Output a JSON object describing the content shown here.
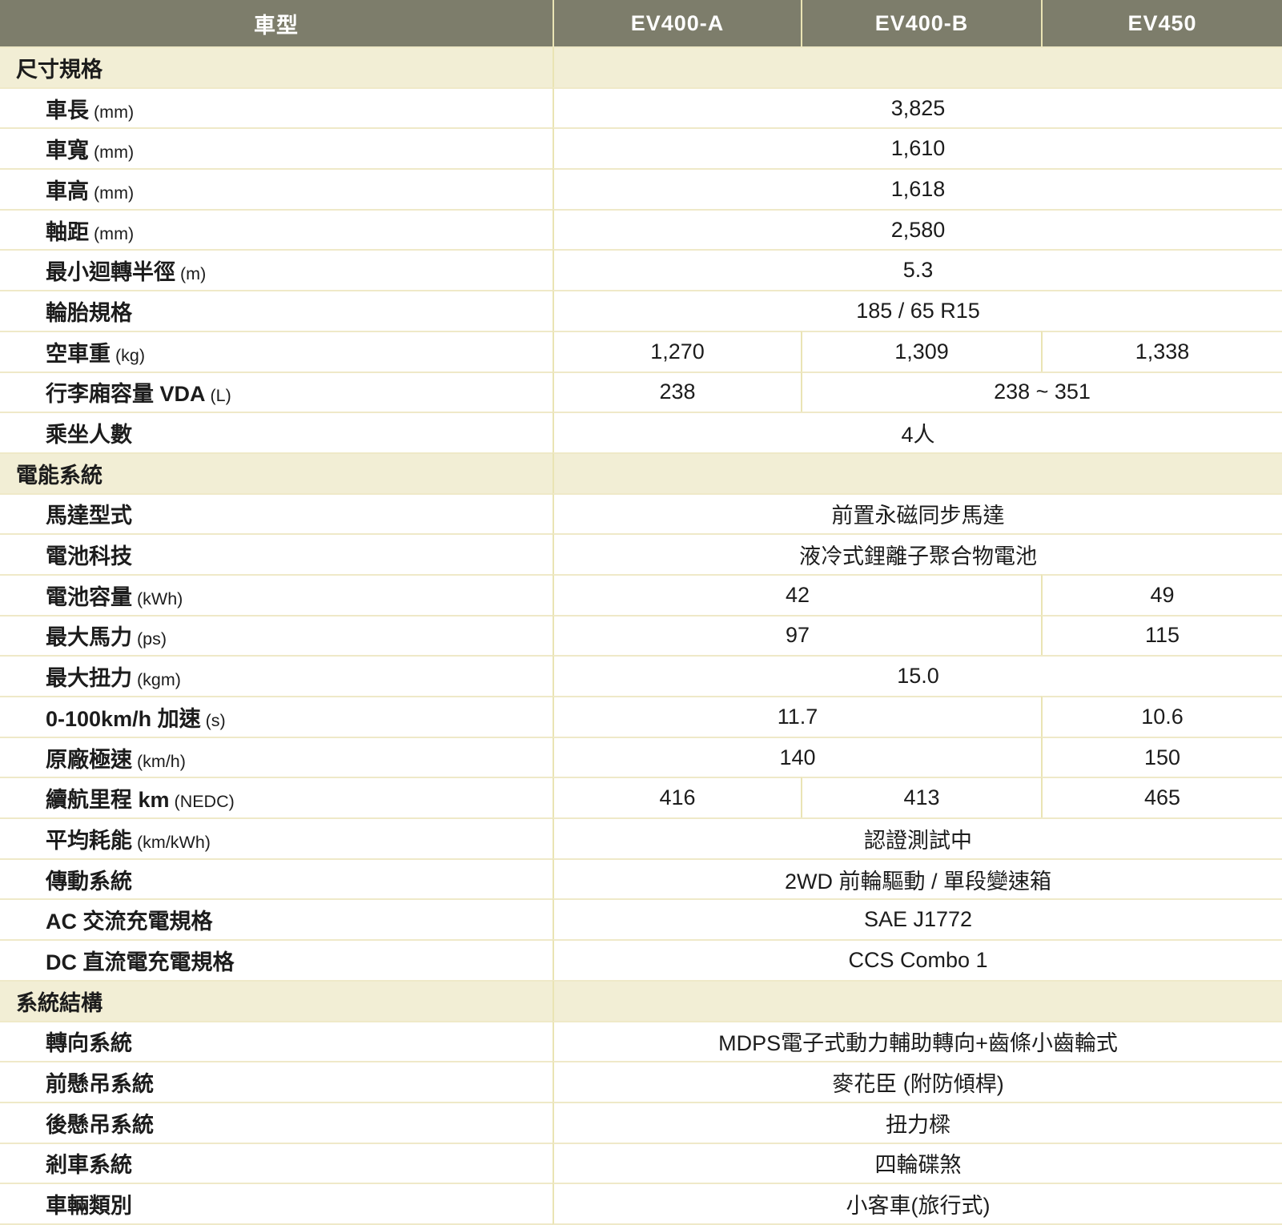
{
  "table": {
    "header": {
      "model_label": "車型",
      "columns": [
        "EV400-A",
        "EV400-B",
        "EV450"
      ]
    },
    "sections": [
      {
        "title": "尺寸規格",
        "rows": [
          {
            "label": "車長",
            "unit": "(mm)",
            "cells": [
              {
                "text": "3,825",
                "span": 3
              }
            ]
          },
          {
            "label": "車寬",
            "unit": "(mm)",
            "cells": [
              {
                "text": "1,610",
                "span": 3
              }
            ]
          },
          {
            "label": "車高",
            "unit": "(mm)",
            "cells": [
              {
                "text": "1,618",
                "span": 3
              }
            ]
          },
          {
            "label": "軸距",
            "unit": "(mm)",
            "cells": [
              {
                "text": "2,580",
                "span": 3
              }
            ]
          },
          {
            "label": "最小迴轉半徑",
            "unit": "(m)",
            "cells": [
              {
                "text": "5.3",
                "span": 3
              }
            ]
          },
          {
            "label": "輪胎規格",
            "unit": "",
            "cells": [
              {
                "text": "185 / 65 R15",
                "span": 3
              }
            ]
          },
          {
            "label": "空車重",
            "unit": "(kg)",
            "cells": [
              {
                "text": "1,270",
                "span": 1
              },
              {
                "text": "1,309",
                "span": 1
              },
              {
                "text": "1,338",
                "span": 1
              }
            ]
          },
          {
            "label": "行李廂容量 VDA",
            "unit": "(L)",
            "cells": [
              {
                "text": "238",
                "span": 1
              },
              {
                "text": "238 ~ 351",
                "span": 2
              }
            ]
          },
          {
            "label": "乘坐人數",
            "unit": "",
            "cells": [
              {
                "text": "4人",
                "span": 3
              }
            ]
          }
        ]
      },
      {
        "title": "電能系統",
        "rows": [
          {
            "label": "馬達型式",
            "unit": "",
            "cells": [
              {
                "text": "前置永磁同步馬達",
                "span": 3
              }
            ]
          },
          {
            "label": "電池科技",
            "unit": "",
            "cells": [
              {
                "text": "液冷式鋰離子聚合物電池",
                "span": 3
              }
            ]
          },
          {
            "label": "電池容量",
            "unit": "(kWh)",
            "cells": [
              {
                "text": "42",
                "span": 2
              },
              {
                "text": "49",
                "span": 1
              }
            ]
          },
          {
            "label": "最大馬力",
            "unit": "(ps)",
            "cells": [
              {
                "text": "97",
                "span": 2
              },
              {
                "text": "115",
                "span": 1
              }
            ]
          },
          {
            "label": "最大扭力",
            "unit": "(kgm)",
            "cells": [
              {
                "text": "15.0",
                "span": 3
              }
            ]
          },
          {
            "label": "0-100km/h 加速",
            "unit": "(s)",
            "cells": [
              {
                "text": "11.7",
                "span": 2
              },
              {
                "text": "10.6",
                "span": 1
              }
            ]
          },
          {
            "label": "原廠極速",
            "unit": "(km/h)",
            "cells": [
              {
                "text": "140",
                "span": 2
              },
              {
                "text": "150",
                "span": 1
              }
            ]
          },
          {
            "label": "續航里程 km",
            "unit": "(NEDC)",
            "cells": [
              {
                "text": "416",
                "span": 1
              },
              {
                "text": "413",
                "span": 1
              },
              {
                "text": "465",
                "span": 1
              }
            ]
          },
          {
            "label": "平均耗能",
            "unit": "(km/kWh)",
            "cells": [
              {
                "text": "認證測試中",
                "span": 3
              }
            ]
          },
          {
            "label": "傳動系統",
            "unit": "",
            "cells": [
              {
                "text": "2WD 前輪驅動 / 單段變速箱",
                "span": 3
              }
            ]
          },
          {
            "label": "AC 交流充電規格",
            "unit": "",
            "cells": [
              {
                "text": "SAE J1772",
                "span": 3
              }
            ]
          },
          {
            "label": "DC 直流電充電規格",
            "unit": "",
            "cells": [
              {
                "text": "CCS Combo 1",
                "span": 3
              }
            ]
          }
        ]
      },
      {
        "title": "系統結構",
        "rows": [
          {
            "label": "轉向系統",
            "unit": "",
            "cells": [
              {
                "text": "MDPS電子式動力輔助轉向+齒條小齒輪式",
                "span": 3
              }
            ]
          },
          {
            "label": "前懸吊系統",
            "unit": "",
            "cells": [
              {
                "text": "麥花臣 (附防傾桿)",
                "span": 3
              }
            ]
          },
          {
            "label": "後懸吊系統",
            "unit": "",
            "cells": [
              {
                "text": "扭力樑",
                "span": 3
              }
            ]
          },
          {
            "label": "剎車系統",
            "unit": "",
            "cells": [
              {
                "text": "四輪碟煞",
                "span": 3
              }
            ]
          },
          {
            "label": "車輛類別",
            "unit": "",
            "cells": [
              {
                "text": "小客車(旅行式)",
                "span": 3
              }
            ]
          }
        ]
      }
    ],
    "colors": {
      "header_bg": "#7D7D6B",
      "header_text": "#FFFFFF",
      "section_bg": "#F2EED5",
      "row_divider": "#EFE9C8",
      "column_divider": "#EAE4B4",
      "text": "#1C1C1C"
    }
  }
}
